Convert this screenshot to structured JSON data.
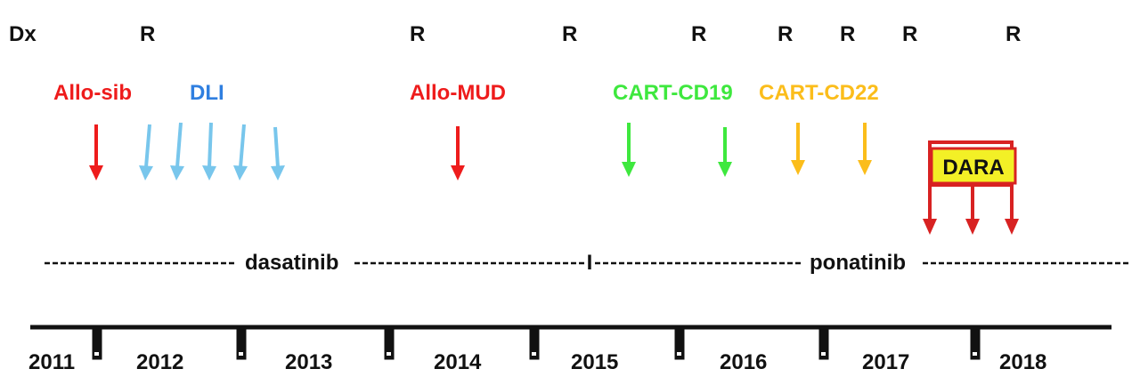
{
  "events": {
    "diagnosis_label": "Dx",
    "relapse_label": "R",
    "relapse_count": 8
  },
  "treatments": [
    {
      "id": "allo-sib",
      "label": "Allo-sib",
      "color": "#ee1c1c",
      "arrow_count": 1
    },
    {
      "id": "dli",
      "label": "DLI",
      "color": "#2f7fe0",
      "arrow_color": "#78c6ec",
      "arrow_count": 5
    },
    {
      "id": "allo-mud",
      "label": "Allo-MUD",
      "color": "#ee1c1c",
      "arrow_count": 1
    },
    {
      "id": "cart-cd19",
      "label": "CART-CD19",
      "color": "#3ee83e",
      "arrow_count": 2
    },
    {
      "id": "cart-cd22",
      "label": "CART-CD22",
      "color": "#fbbd1b",
      "arrow_count": 2
    },
    {
      "id": "dara",
      "label": "DARA",
      "box_fill": "#f3f026",
      "box_border": "#d82222",
      "arrow_color": "#d82222",
      "arrow_count": 3
    }
  ],
  "tki": {
    "first": "dasatinib",
    "divider": "I",
    "second": "ponatinib"
  },
  "years": [
    "2011",
    "2012",
    "2013",
    "2014",
    "2015",
    "2016",
    "2017",
    "2018"
  ]
}
